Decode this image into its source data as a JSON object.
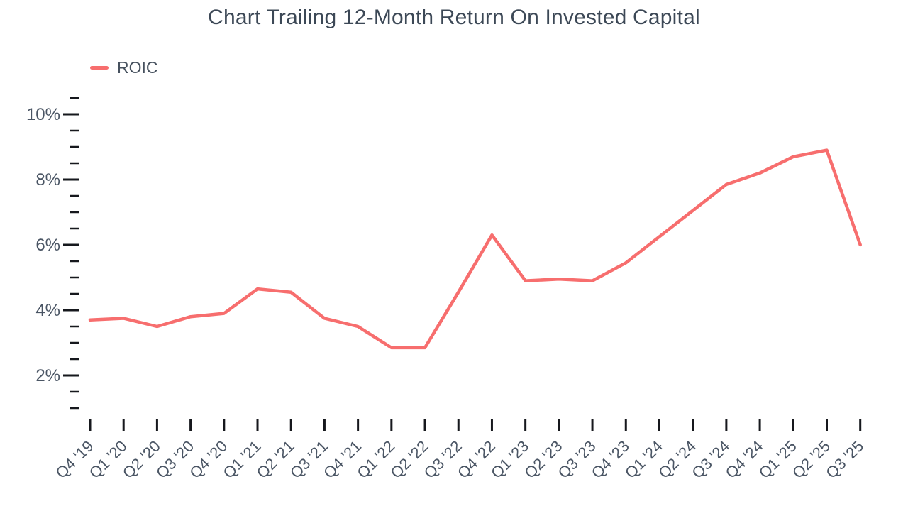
{
  "title": "Chart Trailing 12-Month Return On Invested Capital",
  "legend": {
    "items": [
      {
        "label": "ROIC",
        "color": "#F76E6E"
      }
    ]
  },
  "colors": {
    "line": "#F76E6E",
    "tick": "#16181d",
    "axis_label": "#4a5564",
    "title": "#3c4856"
  },
  "chart_data": {
    "type": "line",
    "title": "Chart Trailing 12-Month Return On Invested Capital",
    "legend_position": "top-left",
    "grid": false,
    "categories": [
      "Q4 '19",
      "Q1 '20",
      "Q2 '20",
      "Q3 '20",
      "Q4 '20",
      "Q1 '21",
      "Q2 '21",
      "Q3 '21",
      "Q4 '21",
      "Q1 '22",
      "Q2 '22",
      "Q3 '22",
      "Q4 '22",
      "Q1 '23",
      "Q2 '23",
      "Q3 '23",
      "Q4 '23",
      "Q1 '24",
      "Q2 '24",
      "Q3 '24",
      "Q4 '24",
      "Q1 '25",
      "Q2 '25",
      "Q3 '25"
    ],
    "series": [
      {
        "name": "ROIC",
        "color": "#F76E6E",
        "values": [
          3.7,
          3.75,
          3.5,
          3.8,
          3.9,
          4.65,
          4.55,
          3.75,
          3.5,
          2.85,
          2.85,
          4.55,
          6.3,
          4.9,
          4.95,
          4.9,
          5.45,
          6.25,
          7.05,
          7.85,
          8.2,
          8.7,
          8.9,
          6.0
        ]
      }
    ],
    "xlabel": "",
    "ylabel": "",
    "y_axis": {
      "unit": "%",
      "min": 1.0,
      "max": 10.5,
      "major_ticks": [
        {
          "value": 10,
          "label": "10%"
        },
        {
          "value": 8,
          "label": "8%"
        },
        {
          "value": 6,
          "label": "6%"
        },
        {
          "value": 4,
          "label": "4%"
        },
        {
          "value": 2,
          "label": "2%"
        }
      ],
      "minor_tick_step": 0.5
    }
  }
}
